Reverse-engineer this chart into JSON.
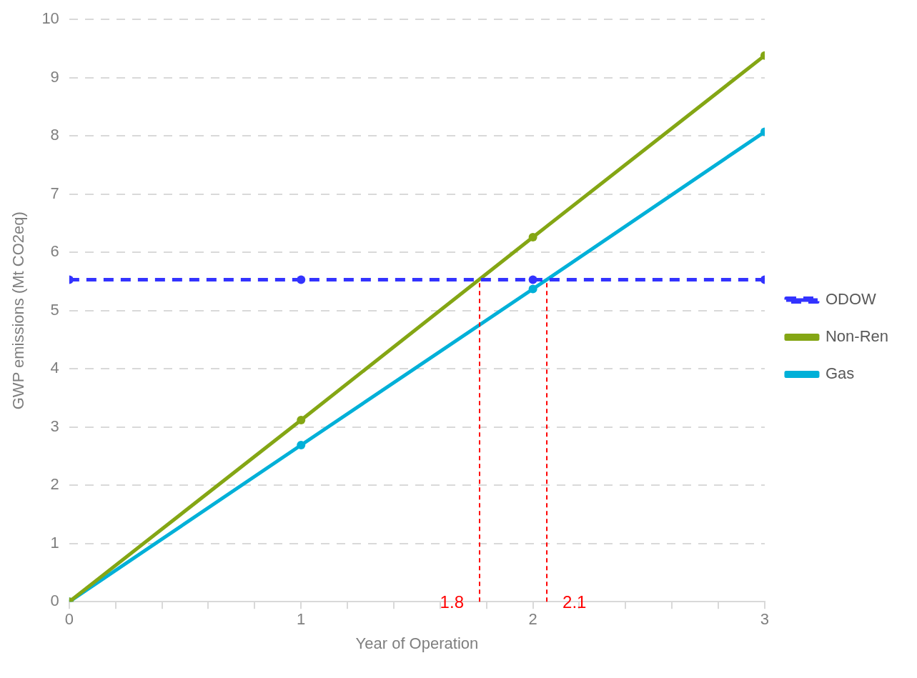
{
  "chart_data": {
    "type": "line",
    "xlabel": "Year of Operation",
    "ylabel": "GWP emissions (Mt CO2eq)",
    "x": [
      0,
      1,
      2,
      3
    ],
    "series": [
      {
        "name": "ODOW",
        "color": "#3333ff",
        "line_style": "dashed",
        "values": [
          5.53,
          5.53,
          5.53,
          5.53
        ]
      },
      {
        "name": "Non-Ren",
        "color": "#84a614",
        "values": [
          0,
          3.12,
          6.26,
          9.38
        ]
      },
      {
        "name": "Gas",
        "color": "#00b0d8",
        "values": [
          0,
          2.69,
          5.37,
          8.07
        ]
      }
    ],
    "xlim": [
      0,
      3
    ],
    "xticks": [
      0,
      {
        "value": 0.2,
        "label": null
      },
      {
        "value": 0.4,
        "label": null
      },
      {
        "value": 0.6,
        "label": null
      },
      {
        "value": 0.8,
        "label": null
      },
      1,
      {
        "value": 1.2,
        "label": null
      },
      {
        "value": 1.4,
        "label": null
      },
      {
        "value": 1.6,
        "label": null
      },
      {
        "value": 1.8,
        "label": null
      },
      2,
      {
        "value": 2.2,
        "label": null
      },
      {
        "value": 2.4,
        "label": null
      },
      {
        "value": 2.6,
        "label": null
      },
      {
        "value": 2.8,
        "label": null
      },
      3
    ],
    "ylim": [
      0,
      10
    ],
    "yticks": [
      0,
      1,
      2,
      3,
      4,
      5,
      6,
      7,
      8,
      9,
      10
    ],
    "ref_lines": [
      {
        "axis": "x",
        "value": 1.77,
        "label": "1.8",
        "color": "#ff0000",
        "line_style": "dashed"
      },
      {
        "axis": "x",
        "value": 2.06,
        "label": "2.1",
        "color": "#ff0000",
        "line_style": "dashed"
      }
    ],
    "grid": "y",
    "legend": "right",
    "marker": "circle",
    "line_style": "solid"
  }
}
